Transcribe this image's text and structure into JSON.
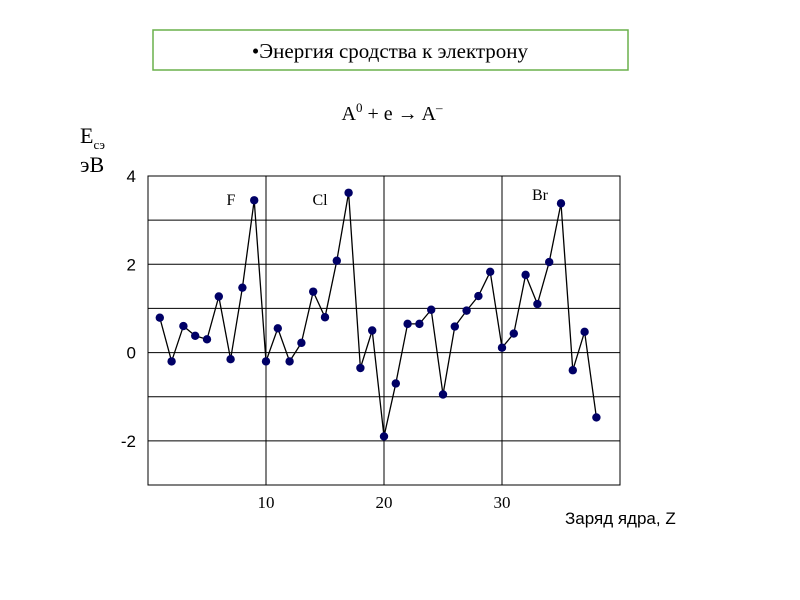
{
  "chart_data": {
    "type": "line",
    "title": "•Энергия сродства к электрону",
    "formula": {
      "atom": "A",
      "atom_charge": "0",
      "middle": " + e → A",
      "ion_charge": "–"
    },
    "y_label": {
      "symbol": "E",
      "subscript": "сэ",
      "unit": "эВ"
    },
    "x_label": "Заряд ядра, Z",
    "annotations": [
      "F",
      "Cl",
      "Br"
    ],
    "x": [
      1,
      2,
      3,
      4,
      5,
      6,
      7,
      8,
      9,
      10,
      11,
      12,
      13,
      14,
      15,
      16,
      17,
      18,
      19,
      20,
      21,
      22,
      23,
      24,
      25,
      26,
      27,
      28,
      29,
      30,
      31,
      32,
      33,
      34,
      35,
      36,
      37,
      38
    ],
    "values": [
      0.79,
      -0.2,
      0.6,
      0.38,
      0.3,
      1.27,
      -0.15,
      1.47,
      3.45,
      -0.2,
      0.55,
      -0.2,
      0.22,
      1.38,
      0.8,
      2.08,
      3.62,
      -0.35,
      0.5,
      -1.9,
      -0.7,
      0.65,
      0.65,
      0.97,
      -0.95,
      0.59,
      0.95,
      1.28,
      1.83,
      0.11,
      0.43,
      1.76,
      1.1,
      2.05,
      3.38,
      -0.4,
      0.47,
      -1.47
    ],
    "line_color": "#000000",
    "marker_color": "#000066",
    "xlim": [
      0,
      40
    ],
    "ylim": [
      -3,
      4
    ],
    "xticks": [
      10,
      20,
      30
    ],
    "yticks": [
      -2,
      0,
      2,
      4
    ],
    "y_minor_grid": [
      -3,
      -1,
      1,
      3
    ],
    "grid": true
  }
}
